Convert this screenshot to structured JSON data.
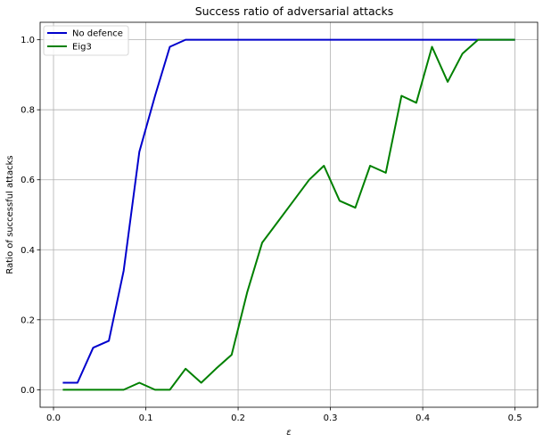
{
  "chart_data": {
    "type": "line",
    "title": "Success ratio of adversarial attacks",
    "xlabel": "ε",
    "ylabel": "Ratio of successful attacks",
    "xlim": [
      -0.0145,
      0.5245
    ],
    "ylim": [
      -0.05,
      1.05
    ],
    "xticks": [
      0.0,
      0.1,
      0.2,
      0.3,
      0.4,
      0.5
    ],
    "xtick_labels": [
      "0.0",
      "0.1",
      "0.2",
      "0.3",
      "0.4",
      "0.5"
    ],
    "yticks": [
      0.0,
      0.2,
      0.4,
      0.6,
      0.8,
      1.0
    ],
    "ytick_labels": [
      "0.0",
      "0.2",
      "0.4",
      "0.6",
      "0.8",
      "1.0"
    ],
    "grid": true,
    "legend_position": "top-left",
    "x": [
      0.01,
      0.026,
      0.043,
      0.06,
      0.076,
      0.093,
      0.11,
      0.126,
      0.143,
      0.16,
      0.176,
      0.193,
      0.21,
      0.226,
      0.243,
      0.26,
      0.277,
      0.293,
      0.31,
      0.327,
      0.343,
      0.36,
      0.377,
      0.393,
      0.41,
      0.427,
      0.443,
      0.46,
      0.477,
      0.493,
      0.5
    ],
    "series": [
      {
        "name": "No defence",
        "color": "#0000cc",
        "values": [
          0.02,
          0.02,
          0.12,
          0.14,
          0.34,
          0.68,
          0.84,
          0.98,
          1.0,
          1.0,
          1.0,
          1.0,
          1.0,
          1.0,
          1.0,
          1.0,
          1.0,
          1.0,
          1.0,
          1.0,
          1.0,
          1.0,
          1.0,
          1.0,
          1.0,
          1.0,
          1.0,
          1.0,
          1.0,
          1.0,
          1.0
        ]
      },
      {
        "name": "Eig3",
        "color": "#008000",
        "values": [
          0.0,
          0.0,
          0.0,
          0.0,
          0.0,
          0.02,
          0.0,
          0.0,
          0.06,
          0.02,
          0.06,
          0.1,
          0.28,
          0.42,
          0.48,
          0.54,
          0.6,
          0.64,
          0.54,
          0.52,
          0.64,
          0.62,
          0.84,
          0.82,
          0.98,
          0.88,
          0.96,
          1.0,
          1.0,
          1.0,
          1.0
        ]
      }
    ]
  }
}
